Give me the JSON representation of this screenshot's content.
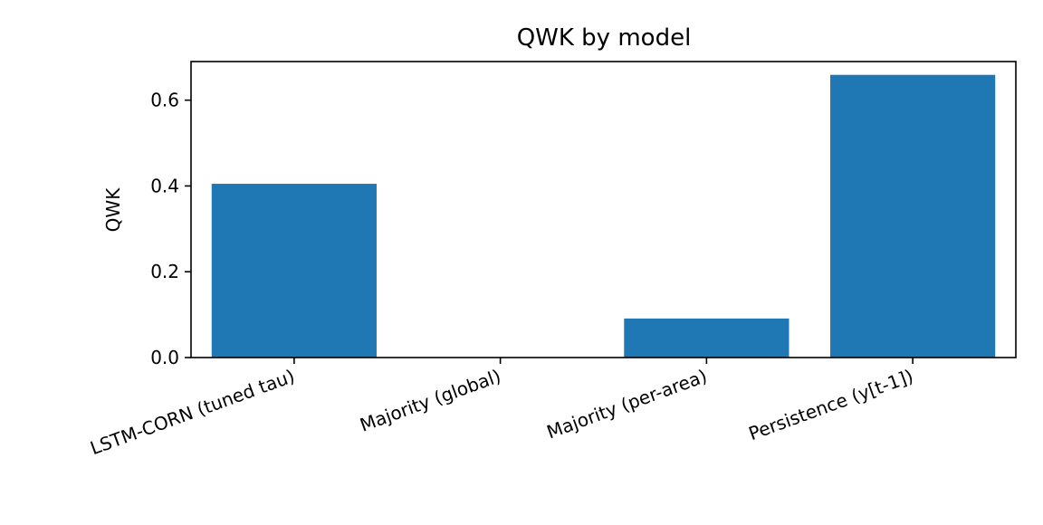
{
  "chart_data": {
    "type": "bar",
    "title": "QWK by model",
    "xlabel": "",
    "ylabel": "QWK",
    "categories": [
      "LSTM-CORN (tuned tau)",
      "Majority (global)",
      "Majority (per-area)",
      "Persistence (y[t-1])"
    ],
    "values": [
      0.405,
      0.0,
      0.091,
      0.659
    ],
    "ylim": [
      0,
      0.69
    ],
    "yticks": [
      0.0,
      0.2,
      0.4,
      0.6
    ],
    "ytick_labels": [
      "0.0",
      "0.2",
      "0.4",
      "0.6"
    ],
    "grid": false,
    "legend": "none",
    "colors": {
      "bar": "#1f77b4",
      "axis": "#000000",
      "background": "#ffffff"
    }
  }
}
